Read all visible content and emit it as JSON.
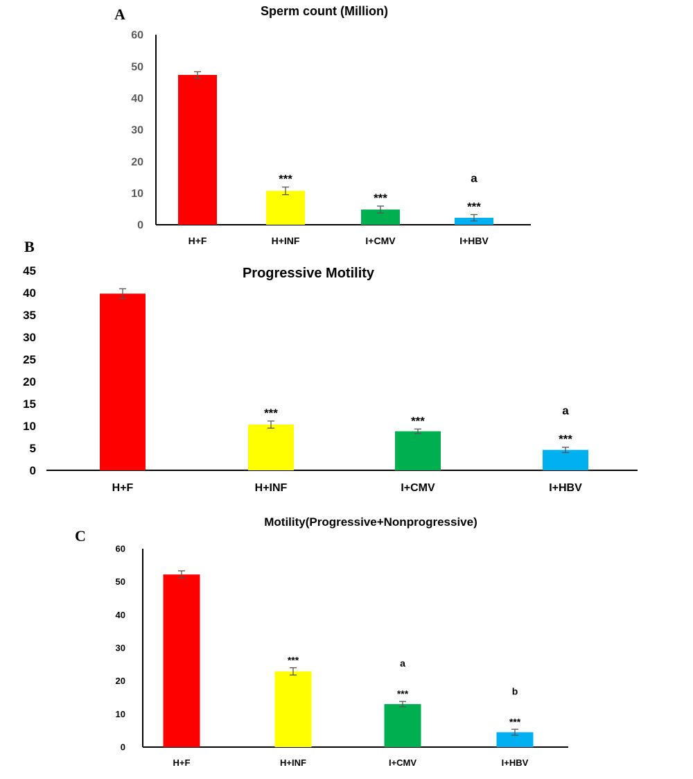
{
  "chart_data": [
    {
      "type": "bar",
      "panel": "A",
      "title": "Sperm count (Million)",
      "categories": [
        "H+F",
        "H+INF",
        "I+CMV",
        "I+HBV"
      ],
      "values": [
        47.3,
        10.7,
        4.8,
        2.2
      ],
      "errors": [
        1.0,
        1.2,
        1.1,
        1.0
      ],
      "colors": [
        "#ff0000",
        "#ffff00",
        "#00b050",
        "#00b0f0"
      ],
      "annotations": [
        [],
        [
          "***"
        ],
        [
          "***"
        ],
        [
          "***",
          "a"
        ]
      ],
      "ylim": [
        0,
        60
      ],
      "yticks": [
        0,
        10,
        20,
        30,
        40,
        50,
        60
      ]
    },
    {
      "type": "bar",
      "panel": "B",
      "title": "Progressive Motility",
      "categories": [
        "H+F",
        "H+INF",
        "I+CMV",
        "I+HBV"
      ],
      "values": [
        39.8,
        10.3,
        8.8,
        4.6
      ],
      "errors": [
        1.1,
        0.8,
        0.5,
        0.6
      ],
      "colors": [
        "#ff0000",
        "#ffff00",
        "#00b050",
        "#00b0f0"
      ],
      "annotations": [
        [],
        [
          "***"
        ],
        [
          "***"
        ],
        [
          "***",
          "a"
        ]
      ],
      "ylim": [
        0,
        45
      ],
      "yticks": [
        0,
        5,
        10,
        15,
        20,
        25,
        30,
        35,
        40,
        45
      ]
    },
    {
      "type": "bar",
      "panel": "C",
      "title": "Motility(Progressive+Nonprogressive)",
      "categories": [
        "H+F",
        "H+INF",
        "I+CMV",
        "I+HBV"
      ],
      "values": [
        52.2,
        22.9,
        13.0,
        4.5
      ],
      "errors": [
        1.1,
        1.1,
        0.8,
        0.9
      ],
      "colors": [
        "#ff0000",
        "#ffff00",
        "#00b050",
        "#00b0f0"
      ],
      "annotations": [
        [],
        [
          "***"
        ],
        [
          "***",
          "a"
        ],
        [
          "***",
          "b"
        ]
      ],
      "ylim": [
        0,
        60
      ],
      "yticks": [
        0,
        10,
        20,
        30,
        40,
        50,
        60
      ]
    }
  ]
}
